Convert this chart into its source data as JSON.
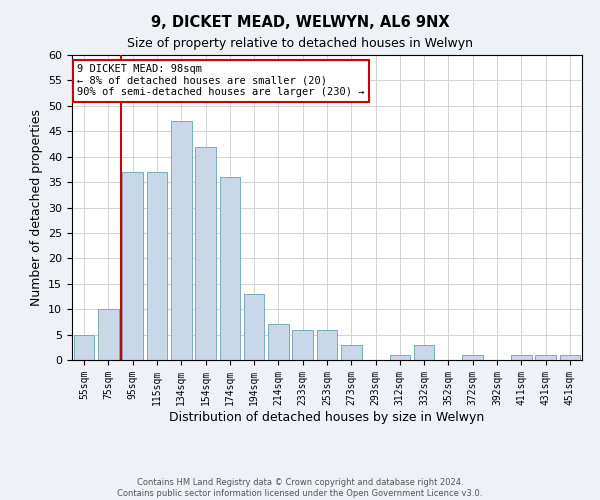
{
  "title": "9, DICKET MEAD, WELWYN, AL6 9NX",
  "subtitle": "Size of property relative to detached houses in Welwyn",
  "xlabel": "Distribution of detached houses by size in Welwyn",
  "ylabel": "Number of detached properties",
  "bar_labels": [
    "55sqm",
    "75sqm",
    "95sqm",
    "115sqm",
    "134sqm",
    "154sqm",
    "174sqm",
    "194sqm",
    "214sqm",
    "233sqm",
    "253sqm",
    "273sqm",
    "293sqm",
    "312sqm",
    "332sqm",
    "352sqm",
    "372sqm",
    "392sqm",
    "411sqm",
    "431sqm",
    "451sqm"
  ],
  "bar_values": [
    5,
    10,
    37,
    37,
    47,
    42,
    36,
    13,
    7,
    6,
    6,
    3,
    0,
    1,
    3,
    0,
    1,
    0,
    1,
    1,
    1
  ],
  "bar_color": "#c8d8e8",
  "bar_edge_color": "#7aaabb",
  "marker_line_index": 2,
  "marker_line_color": "#cc0000",
  "ylim": [
    0,
    60
  ],
  "yticks": [
    0,
    5,
    10,
    15,
    20,
    25,
    30,
    35,
    40,
    45,
    50,
    55,
    60
  ],
  "annotation_title": "9 DICKET MEAD: 98sqm",
  "annotation_line1": "← 8% of detached houses are smaller (20)",
  "annotation_line2": "90% of semi-detached houses are larger (230) →",
  "annotation_box_color": "#ffffff",
  "annotation_box_edge": "#cc0000",
  "footer_line1": "Contains HM Land Registry data © Crown copyright and database right 2024.",
  "footer_line2": "Contains public sector information licensed under the Open Government Licence v3.0.",
  "bg_color": "#eef2f7",
  "plot_bg_color": "#ffffff",
  "grid_color": "#cccccc"
}
